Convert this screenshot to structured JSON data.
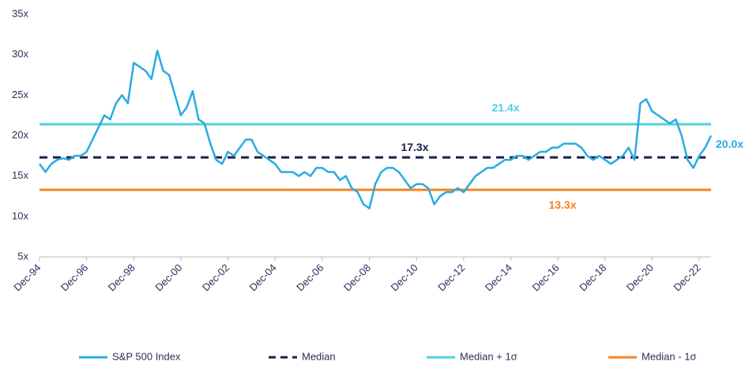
{
  "chart_data": {
    "type": "line",
    "categories": [
      "Dec-94",
      null,
      null,
      null,
      null,
      null,
      null,
      null,
      "Dec-96",
      null,
      null,
      null,
      null,
      null,
      null,
      null,
      "Dec-98",
      null,
      null,
      null,
      null,
      null,
      null,
      null,
      "Dec-00",
      null,
      null,
      null,
      null,
      null,
      null,
      null,
      "Dec-02",
      null,
      null,
      null,
      null,
      null,
      null,
      null,
      "Dec-04",
      null,
      null,
      null,
      null,
      null,
      null,
      null,
      "Dec-06",
      null,
      null,
      null,
      null,
      null,
      null,
      null,
      "Dec-08",
      null,
      null,
      null,
      null,
      null,
      null,
      null,
      "Dec-10",
      null,
      null,
      null,
      null,
      null,
      null,
      null,
      "Dec-12",
      null,
      null,
      null,
      null,
      null,
      null,
      null,
      "Dec-14",
      null,
      null,
      null,
      null,
      null,
      null,
      null,
      "Dec-16",
      null,
      null,
      null,
      null,
      null,
      null,
      null,
      "Dec-18",
      null,
      null,
      null,
      null,
      null,
      null,
      null,
      "Dec-20",
      null,
      null,
      null,
      null,
      null,
      null,
      null,
      "Dec-22",
      null,
      null
    ],
    "series": [
      {
        "name": "S&P 500 Index",
        "color": "#29abe2",
        "end_label": "20.0x",
        "values": [
          16.5,
          15.5,
          16.5,
          17,
          17.2,
          17,
          17.5,
          17.5,
          18,
          19.5,
          21,
          22.5,
          22,
          24,
          25,
          24,
          29,
          28.5,
          28,
          27,
          30.5,
          28,
          27.5,
          25,
          22.5,
          23.5,
          25.5,
          22,
          21.5,
          19,
          17,
          16.5,
          18,
          17.5,
          18.5,
          19.5,
          19.5,
          18,
          17.5,
          17,
          16.5,
          15.5,
          15.5,
          15.5,
          15,
          15.5,
          15,
          16,
          16,
          15.5,
          15.5,
          14.5,
          15,
          13.5,
          13,
          11.5,
          11,
          14,
          15.5,
          16,
          16,
          15.5,
          14.5,
          13.5,
          14,
          14,
          13.5,
          11.5,
          12.5,
          13,
          13,
          13.5,
          13,
          14,
          15,
          15.5,
          16,
          16,
          16.5,
          17,
          17,
          17.5,
          17.5,
          17,
          17.5,
          18,
          18,
          18.5,
          18.5,
          19,
          19,
          19,
          18.5,
          17.5,
          17,
          17.5,
          17,
          16.5,
          17,
          17.5,
          18.5,
          17,
          24,
          24.5,
          23,
          22.5,
          22,
          21.5,
          22,
          20,
          17,
          16,
          17.5,
          18.5,
          20.0
        ]
      }
    ],
    "reference_lines": [
      {
        "name": "Median",
        "value": 17.3,
        "value_label": "17.3x",
        "color": "#1a1f4a",
        "dashed": true
      },
      {
        "name": "Median + 1σ",
        "value": 21.4,
        "value_label": "21.4x",
        "color": "#4fd1d9",
        "dashed": false
      },
      {
        "name": "Median - 1σ",
        "value": 13.3,
        "value_label": "13.3x",
        "color": "#f5841f",
        "dashed": false
      }
    ],
    "ylim": [
      5,
      35
    ],
    "yticks": [
      {
        "value": 5,
        "label": "5x"
      },
      {
        "value": 10,
        "label": "10x"
      },
      {
        "value": 15,
        "label": "15x"
      },
      {
        "value": 20,
        "label": "20x"
      },
      {
        "value": 25,
        "label": "25x"
      },
      {
        "value": 30,
        "label": "30x"
      },
      {
        "value": 35,
        "label": "35x"
      }
    ],
    "grid": false
  }
}
